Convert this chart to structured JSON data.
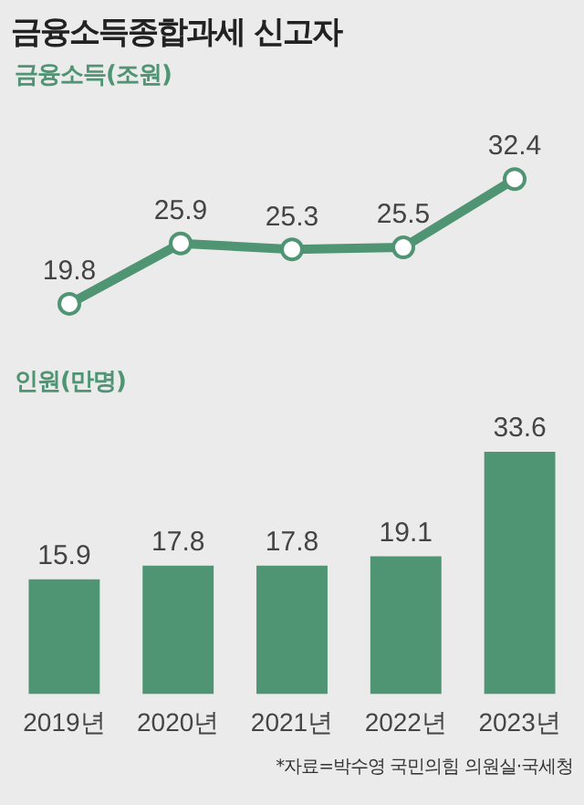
{
  "chart_data": [
    {
      "type": "line",
      "title": "금융소득종합과세 신고자",
      "subtitle": "금융소득(조원)",
      "categories": [
        null,
        null,
        null,
        null,
        null
      ],
      "series": [
        {
          "color": "#4f9473",
          "values": [
            19.8,
            25.9,
            25.3,
            25.5,
            32.4
          ]
        }
      ],
      "marker": "circle",
      "data_labels": true,
      "tick_labels": false,
      "grid": false,
      "legend": false
    },
    {
      "type": "bar",
      "title": "인원(만명)",
      "categories": [
        "2019년",
        "2020년",
        "2021년",
        "2022년",
        "2023년"
      ],
      "series": [
        {
          "color": "#4f9473",
          "values": [
            15.9,
            17.8,
            17.8,
            19.1,
            33.6
          ]
        }
      ],
      "data_labels": true,
      "tick_labels": "x",
      "grid": false,
      "legend": false,
      "annotations": [
        "*자료=박수영 국민의힘 의원실·국세청"
      ]
    }
  ]
}
